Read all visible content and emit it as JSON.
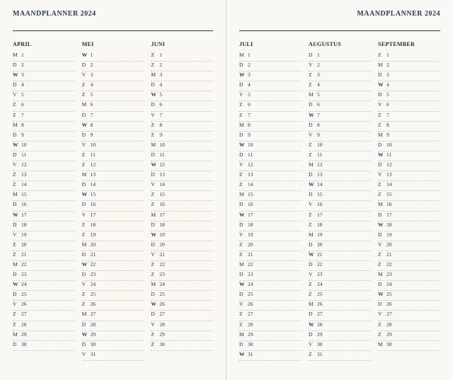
{
  "title": "MAANDPLANNER",
  "year": "2024",
  "accent_color": "#2a3a66",
  "background_color": "#f9f8f5",
  "dot_color": "#c7c3b7",
  "pages": [
    {
      "side": "left",
      "months": [
        {
          "name": "APRIL",
          "days": [
            {
              "l": "M",
              "n": "1"
            },
            {
              "l": "D",
              "n": "2"
            },
            {
              "l": "W",
              "n": "3",
              "a": true
            },
            {
              "l": "D",
              "n": "4"
            },
            {
              "l": "V",
              "n": "5"
            },
            {
              "l": "Z",
              "n": "6"
            },
            {
              "l": "Z",
              "n": "7"
            },
            {
              "l": "M",
              "n": "8"
            },
            {
              "l": "D",
              "n": "9"
            },
            {
              "l": "W",
              "n": "10",
              "a": true
            },
            {
              "l": "D",
              "n": "11"
            },
            {
              "l": "V",
              "n": "12"
            },
            {
              "l": "Z",
              "n": "13"
            },
            {
              "l": "Z",
              "n": "14"
            },
            {
              "l": "M",
              "n": "15"
            },
            {
              "l": "D",
              "n": "16"
            },
            {
              "l": "W",
              "n": "17",
              "a": true
            },
            {
              "l": "D",
              "n": "18"
            },
            {
              "l": "V",
              "n": "19"
            },
            {
              "l": "Z",
              "n": "20"
            },
            {
              "l": "Z",
              "n": "21"
            },
            {
              "l": "M",
              "n": "22"
            },
            {
              "l": "D",
              "n": "23"
            },
            {
              "l": "W",
              "n": "24",
              "a": true
            },
            {
              "l": "D",
              "n": "25"
            },
            {
              "l": "V",
              "n": "26"
            },
            {
              "l": "Z",
              "n": "27"
            },
            {
              "l": "Z",
              "n": "28"
            },
            {
              "l": "M",
              "n": "29"
            },
            {
              "l": "D",
              "n": "30"
            }
          ]
        },
        {
          "name": "MEI",
          "days": [
            {
              "l": "W",
              "n": "1",
              "a": true
            },
            {
              "l": "D",
              "n": "2"
            },
            {
              "l": "V",
              "n": "3"
            },
            {
              "l": "Z",
              "n": "4"
            },
            {
              "l": "Z",
              "n": "5"
            },
            {
              "l": "M",
              "n": "6"
            },
            {
              "l": "D",
              "n": "7"
            },
            {
              "l": "W",
              "n": "8",
              "a": true
            },
            {
              "l": "D",
              "n": "9"
            },
            {
              "l": "V",
              "n": "10"
            },
            {
              "l": "Z",
              "n": "11"
            },
            {
              "l": "Z",
              "n": "12"
            },
            {
              "l": "M",
              "n": "13"
            },
            {
              "l": "D",
              "n": "14"
            },
            {
              "l": "W",
              "n": "15",
              "a": true
            },
            {
              "l": "D",
              "n": "16"
            },
            {
              "l": "V",
              "n": "17"
            },
            {
              "l": "Z",
              "n": "18"
            },
            {
              "l": "Z",
              "n": "19"
            },
            {
              "l": "M",
              "n": "20"
            },
            {
              "l": "D",
              "n": "21"
            },
            {
              "l": "W",
              "n": "22",
              "a": true
            },
            {
              "l": "D",
              "n": "23"
            },
            {
              "l": "V",
              "n": "24"
            },
            {
              "l": "Z",
              "n": "25"
            },
            {
              "l": "Z",
              "n": "26"
            },
            {
              "l": "M",
              "n": "27"
            },
            {
              "l": "D",
              "n": "28"
            },
            {
              "l": "W",
              "n": "29",
              "a": true
            },
            {
              "l": "D",
              "n": "30"
            },
            {
              "l": "V",
              "n": "31"
            }
          ]
        },
        {
          "name": "JUNI",
          "days": [
            {
              "l": "Z",
              "n": "1"
            },
            {
              "l": "Z",
              "n": "2"
            },
            {
              "l": "M",
              "n": "3"
            },
            {
              "l": "D",
              "n": "4"
            },
            {
              "l": "W",
              "n": "5",
              "a": true
            },
            {
              "l": "D",
              "n": "6"
            },
            {
              "l": "V",
              "n": "7"
            },
            {
              "l": "Z",
              "n": "8"
            },
            {
              "l": "Z",
              "n": "9"
            },
            {
              "l": "M",
              "n": "10"
            },
            {
              "l": "D",
              "n": "11"
            },
            {
              "l": "W",
              "n": "12",
              "a": true
            },
            {
              "l": "D",
              "n": "13"
            },
            {
              "l": "V",
              "n": "14"
            },
            {
              "l": "Z",
              "n": "15"
            },
            {
              "l": "Z",
              "n": "16"
            },
            {
              "l": "M",
              "n": "17"
            },
            {
              "l": "D",
              "n": "18"
            },
            {
              "l": "W",
              "n": "19",
              "a": true
            },
            {
              "l": "D",
              "n": "20"
            },
            {
              "l": "V",
              "n": "21"
            },
            {
              "l": "Z",
              "n": "22"
            },
            {
              "l": "Z",
              "n": "23"
            },
            {
              "l": "M",
              "n": "24"
            },
            {
              "l": "D",
              "n": "25"
            },
            {
              "l": "W",
              "n": "26",
              "a": true
            },
            {
              "l": "D",
              "n": "27"
            },
            {
              "l": "V",
              "n": "28"
            },
            {
              "l": "Z",
              "n": "29"
            },
            {
              "l": "Z",
              "n": "30"
            }
          ]
        }
      ]
    },
    {
      "side": "right",
      "months": [
        {
          "name": "JULI",
          "days": [
            {
              "l": "M",
              "n": "1"
            },
            {
              "l": "D",
              "n": "2"
            },
            {
              "l": "W",
              "n": "3",
              "a": true
            },
            {
              "l": "D",
              "n": "4"
            },
            {
              "l": "V",
              "n": "5"
            },
            {
              "l": "Z",
              "n": "6"
            },
            {
              "l": "Z",
              "n": "7"
            },
            {
              "l": "M",
              "n": "8"
            },
            {
              "l": "D",
              "n": "9"
            },
            {
              "l": "W",
              "n": "10",
              "a": true
            },
            {
              "l": "D",
              "n": "11"
            },
            {
              "l": "V",
              "n": "12"
            },
            {
              "l": "Z",
              "n": "13"
            },
            {
              "l": "Z",
              "n": "14"
            },
            {
              "l": "M",
              "n": "15"
            },
            {
              "l": "D",
              "n": "16"
            },
            {
              "l": "W",
              "n": "17",
              "a": true
            },
            {
              "l": "D",
              "n": "18"
            },
            {
              "l": "V",
              "n": "19"
            },
            {
              "l": "Z",
              "n": "20"
            },
            {
              "l": "Z",
              "n": "21"
            },
            {
              "l": "M",
              "n": "22"
            },
            {
              "l": "D",
              "n": "23"
            },
            {
              "l": "W",
              "n": "24",
              "a": true
            },
            {
              "l": "D",
              "n": "25"
            },
            {
              "l": "V",
              "n": "26"
            },
            {
              "l": "Z",
              "n": "27"
            },
            {
              "l": "Z",
              "n": "28"
            },
            {
              "l": "M",
              "n": "29"
            },
            {
              "l": "D",
              "n": "30"
            },
            {
              "l": "W",
              "n": "31",
              "a": true
            }
          ]
        },
        {
          "name": "AUGUSTUS",
          "days": [
            {
              "l": "D",
              "n": "1"
            },
            {
              "l": "V",
              "n": "2"
            },
            {
              "l": "Z",
              "n": "3"
            },
            {
              "l": "Z",
              "n": "4"
            },
            {
              "l": "M",
              "n": "5"
            },
            {
              "l": "D",
              "n": "6"
            },
            {
              "l": "W",
              "n": "7",
              "a": true
            },
            {
              "l": "D",
              "n": "8"
            },
            {
              "l": "V",
              "n": "9"
            },
            {
              "l": "Z",
              "n": "10"
            },
            {
              "l": "Z",
              "n": "11"
            },
            {
              "l": "M",
              "n": "12"
            },
            {
              "l": "D",
              "n": "13"
            },
            {
              "l": "W",
              "n": "14",
              "a": true
            },
            {
              "l": "D",
              "n": "15"
            },
            {
              "l": "V",
              "n": "16"
            },
            {
              "l": "Z",
              "n": "17"
            },
            {
              "l": "Z",
              "n": "18"
            },
            {
              "l": "M",
              "n": "19"
            },
            {
              "l": "D",
              "n": "20"
            },
            {
              "l": "W",
              "n": "21",
              "a": true
            },
            {
              "l": "D",
              "n": "22"
            },
            {
              "l": "V",
              "n": "23"
            },
            {
              "l": "Z",
              "n": "24"
            },
            {
              "l": "Z",
              "n": "25"
            },
            {
              "l": "M",
              "n": "26"
            },
            {
              "l": "D",
              "n": "27"
            },
            {
              "l": "W",
              "n": "28",
              "a": true
            },
            {
              "l": "D",
              "n": "29"
            },
            {
              "l": "V",
              "n": "30"
            },
            {
              "l": "Z",
              "n": "31"
            }
          ]
        },
        {
          "name": "SEPTEMBER",
          "days": [
            {
              "l": "Z",
              "n": "1"
            },
            {
              "l": "M",
              "n": "2"
            },
            {
              "l": "D",
              "n": "3"
            },
            {
              "l": "W",
              "n": "4",
              "a": true
            },
            {
              "l": "D",
              "n": "5"
            },
            {
              "l": "V",
              "n": "6"
            },
            {
              "l": "Z",
              "n": "7"
            },
            {
              "l": "Z",
              "n": "8"
            },
            {
              "l": "M",
              "n": "9"
            },
            {
              "l": "D",
              "n": "10"
            },
            {
              "l": "W",
              "n": "11",
              "a": true
            },
            {
              "l": "D",
              "n": "12"
            },
            {
              "l": "V",
              "n": "13"
            },
            {
              "l": "Z",
              "n": "14"
            },
            {
              "l": "Z",
              "n": "15"
            },
            {
              "l": "M",
              "n": "16"
            },
            {
              "l": "D",
              "n": "17"
            },
            {
              "l": "W",
              "n": "18",
              "a": true
            },
            {
              "l": "D",
              "n": "19"
            },
            {
              "l": "V",
              "n": "20"
            },
            {
              "l": "Z",
              "n": "21"
            },
            {
              "l": "Z",
              "n": "22"
            },
            {
              "l": "M",
              "n": "23"
            },
            {
              "l": "D",
              "n": "24"
            },
            {
              "l": "W",
              "n": "25",
              "a": true
            },
            {
              "l": "D",
              "n": "26"
            },
            {
              "l": "V",
              "n": "27"
            },
            {
              "l": "Z",
              "n": "28"
            },
            {
              "l": "Z",
              "n": "29"
            },
            {
              "l": "M",
              "n": "30"
            }
          ]
        }
      ]
    }
  ]
}
